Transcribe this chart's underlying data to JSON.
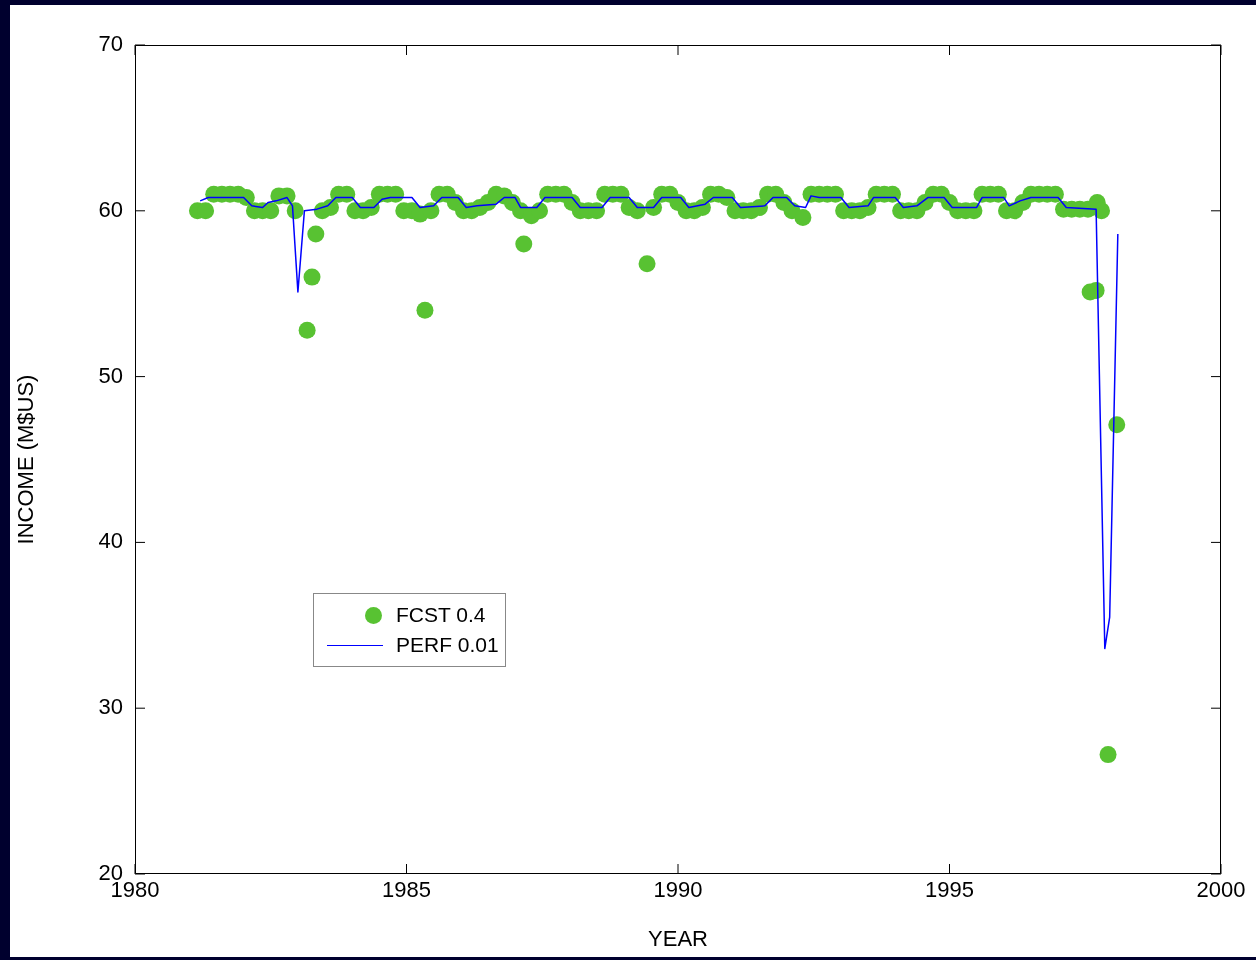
{
  "chart_data": {
    "type": "scatter",
    "xlabel": "YEAR",
    "ylabel": "INCOME (M$US)",
    "xlim": [
      1980,
      2000
    ],
    "ylim": [
      20,
      70
    ],
    "xticks": [
      1980,
      1985,
      1990,
      1995,
      2000
    ],
    "yticks": [
      20,
      30,
      40,
      50,
      60,
      70
    ],
    "grid": false,
    "legend": "left",
    "series": [
      {
        "name": "FCST 0.4",
        "marker": "circle",
        "color": "#58c232",
        "x": [
          1981.15,
          1981.3,
          1981.45,
          1981.6,
          1981.75,
          1981.9,
          1982.05,
          1982.2,
          1982.35,
          1982.5,
          1982.65,
          1982.8,
          1982.95,
          1983.17,
          1983.26,
          1983.33,
          1983.45,
          1983.6,
          1983.75,
          1983.9,
          1984.05,
          1984.2,
          1984.35,
          1984.5,
          1984.65,
          1984.8,
          1984.95,
          1985.1,
          1985.25,
          1985.34,
          1985.45,
          1985.6,
          1985.75,
          1985.9,
          1986.05,
          1986.2,
          1986.35,
          1986.5,
          1986.65,
          1986.8,
          1986.95,
          1987.1,
          1987.16,
          1987.3,
          1987.45,
          1987.6,
          1987.75,
          1987.9,
          1988.05,
          1988.2,
          1988.35,
          1988.5,
          1988.65,
          1988.8,
          1988.95,
          1989.1,
          1989.25,
          1989.43,
          1989.55,
          1989.7,
          1989.85,
          1990.0,
          1990.15,
          1990.3,
          1990.45,
          1990.6,
          1990.75,
          1990.9,
          1991.05,
          1991.2,
          1991.35,
          1991.5,
          1991.65,
          1991.8,
          1991.95,
          1992.1,
          1992.3,
          1992.45,
          1992.6,
          1992.75,
          1992.9,
          1993.05,
          1993.2,
          1993.35,
          1993.5,
          1993.65,
          1993.8,
          1993.95,
          1994.1,
          1994.25,
          1994.4,
          1994.55,
          1994.7,
          1994.85,
          1995.0,
          1995.15,
          1995.3,
          1995.45,
          1995.6,
          1995.75,
          1995.9,
          1996.05,
          1996.2,
          1996.35,
          1996.5,
          1996.65,
          1996.8,
          1996.95,
          1997.1,
          1997.25,
          1997.4,
          1997.55,
          1997.59,
          1997.7,
          1997.72,
          1997.8,
          1997.92,
          1998.08
        ],
        "values": [
          60.0,
          60.0,
          61.0,
          61.0,
          61.0,
          61.0,
          60.8,
          60.0,
          60.0,
          60.0,
          60.9,
          60.9,
          60.0,
          52.8,
          56.0,
          58.6,
          60.0,
          60.2,
          61.0,
          61.0,
          60.0,
          60.0,
          60.2,
          61.0,
          61.0,
          61.0,
          60.0,
          60.0,
          59.8,
          54.0,
          60.0,
          61.0,
          61.0,
          60.5,
          60.0,
          60.0,
          60.2,
          60.5,
          61.0,
          60.9,
          60.5,
          60.0,
          58.0,
          59.7,
          60.0,
          61.0,
          61.0,
          61.0,
          60.5,
          60.0,
          60.0,
          60.0,
          61.0,
          61.0,
          61.0,
          60.2,
          60.0,
          56.8,
          60.2,
          61.0,
          61.0,
          60.5,
          60.0,
          60.0,
          60.2,
          61.0,
          61.0,
          60.8,
          60.0,
          60.0,
          60.0,
          60.2,
          61.0,
          61.0,
          60.5,
          60.0,
          59.6,
          61.0,
          61.0,
          61.0,
          61.0,
          60.0,
          60.0,
          60.0,
          60.2,
          61.0,
          61.0,
          61.0,
          60.0,
          60.0,
          60.0,
          60.5,
          61.0,
          61.0,
          60.5,
          60.0,
          60.0,
          60.0,
          61.0,
          61.0,
          61.0,
          60.0,
          60.0,
          60.5,
          61.0,
          61.0,
          61.0,
          61.0,
          60.1,
          60.1,
          60.1,
          60.1,
          55.1,
          55.2,
          60.5,
          60.0,
          27.2,
          47.1
        ]
      },
      {
        "name": "PERF 0.01",
        "type": "line",
        "marker": "none",
        "line_style": "solid",
        "color": "#0000ff",
        "x": [
          1981.2,
          1981.35,
          1982.0,
          1982.15,
          1982.35,
          1982.45,
          1982.6,
          1982.8,
          1982.9,
          1983.0,
          1983.12,
          1983.35,
          1983.55,
          1983.7,
          1984.0,
          1984.15,
          1984.4,
          1984.55,
          1984.7,
          1985.1,
          1985.25,
          1985.5,
          1985.65,
          1985.95,
          1986.1,
          1986.3,
          1986.65,
          1986.8,
          1987.0,
          1987.1,
          1987.4,
          1987.55,
          1988.05,
          1988.2,
          1988.6,
          1988.75,
          1989.1,
          1989.25,
          1989.55,
          1989.7,
          1990.05,
          1990.2,
          1990.5,
          1990.65,
          1991.0,
          1991.15,
          1991.6,
          1991.75,
          1992.0,
          1992.15,
          1992.35,
          1992.45,
          1992.6,
          1993.0,
          1993.15,
          1993.5,
          1993.6,
          1994.0,
          1994.15,
          1994.4,
          1994.6,
          1994.9,
          1995.05,
          1995.5,
          1995.6,
          1996.0,
          1996.1,
          1996.3,
          1996.5,
          1997.0,
          1997.15,
          1997.7,
          1997.86,
          1997.95,
          1998.1
        ],
        "values": [
          60.6,
          60.8,
          60.8,
          60.3,
          60.2,
          60.5,
          60.6,
          60.8,
          60.3,
          55.1,
          60.0,
          60.1,
          60.3,
          60.8,
          60.8,
          60.2,
          60.2,
          60.7,
          60.8,
          60.8,
          60.2,
          60.3,
          60.8,
          60.8,
          60.2,
          60.3,
          60.4,
          60.8,
          60.8,
          60.2,
          60.2,
          60.8,
          60.8,
          60.2,
          60.2,
          60.8,
          60.8,
          60.2,
          60.2,
          60.8,
          60.8,
          60.2,
          60.4,
          60.8,
          60.8,
          60.2,
          60.3,
          60.8,
          60.8,
          60.3,
          60.2,
          60.9,
          60.8,
          60.8,
          60.2,
          60.3,
          60.8,
          60.8,
          60.2,
          60.3,
          60.8,
          60.8,
          60.2,
          60.2,
          60.8,
          60.8,
          60.3,
          60.6,
          60.8,
          60.8,
          60.2,
          60.1,
          33.6,
          35.5,
          58.6
        ]
      }
    ]
  }
}
